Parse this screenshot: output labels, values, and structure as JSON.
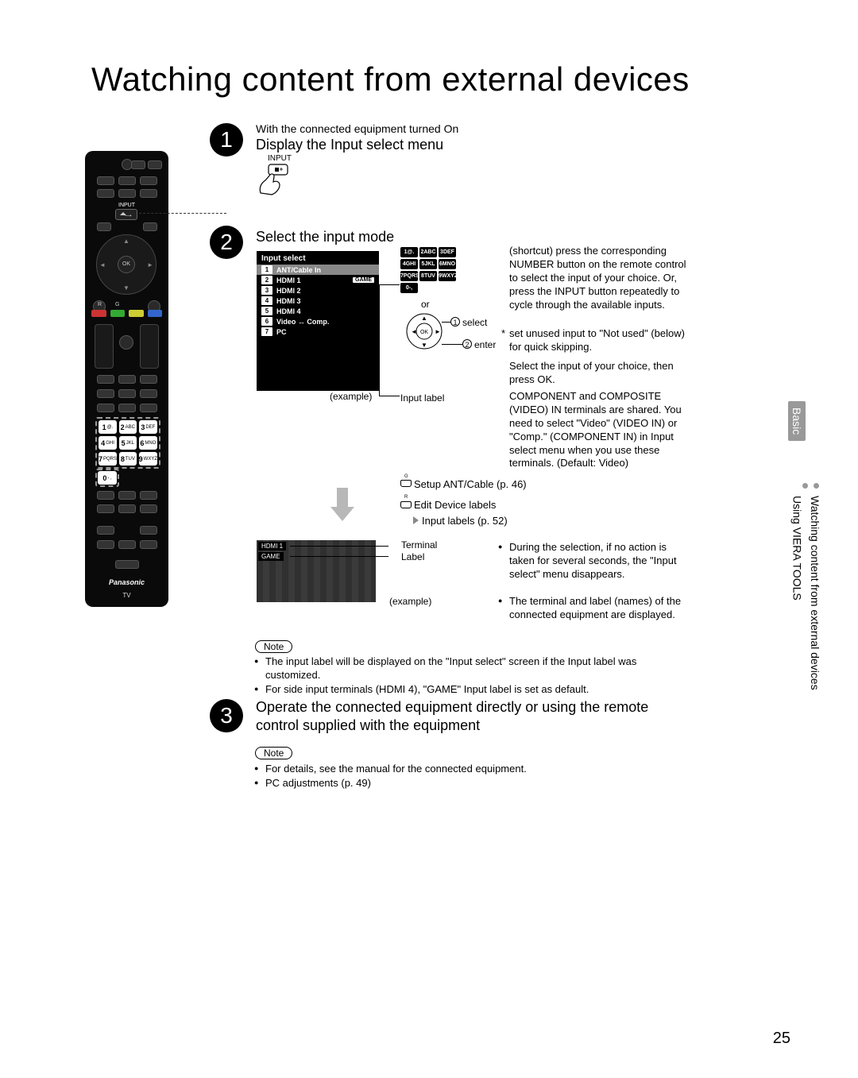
{
  "page_title": "Watching content from external devices",
  "page_number": "25",
  "remote": {
    "input_label": "INPUT",
    "ok": "OK",
    "r": "R",
    "g": "G",
    "keys": [
      {
        "n": "1",
        "s": "@."
      },
      {
        "n": "2",
        "s": "ABC"
      },
      {
        "n": "3",
        "s": "DEF"
      },
      {
        "n": "4",
        "s": "GHI"
      },
      {
        "n": "5",
        "s": "JKL"
      },
      {
        "n": "6",
        "s": "MNO"
      },
      {
        "n": "7",
        "s": "PQRS"
      },
      {
        "n": "8",
        "s": "TUV"
      },
      {
        "n": "9",
        "s": "WXYZ"
      }
    ],
    "zero": {
      "n": "0",
      "s": "- ,"
    },
    "brand": "Panasonic",
    "tv": "TV"
  },
  "step1": {
    "num": "1",
    "pre": "With the connected equipment turned On",
    "title": "Display the Input select menu",
    "input": "INPUT"
  },
  "step2": {
    "num": "2",
    "title": "Select the input mode",
    "menu_title": "Input select",
    "menu_items": [
      {
        "n": "1",
        "t": "ANT/Cable In",
        "hl": true
      },
      {
        "n": "2",
        "t": "HDMI 1",
        "game": "GAME"
      },
      {
        "n": "3",
        "t": "HDMI 2"
      },
      {
        "n": "4",
        "t": "HDMI 3"
      },
      {
        "n": "5",
        "t": "HDMI 4"
      },
      {
        "n": "6",
        "t": "Video  ↔  Comp."
      },
      {
        "n": "7",
        "t": "PC"
      }
    ],
    "example": "(example)",
    "input_label": "Input label",
    "keypad_mini": [
      "1@.",
      "2ABC",
      "3DEF",
      "4GHI",
      "5JKL",
      "6MNO",
      "7PQRS",
      "8TUV",
      "9WXYZ",
      "0-,"
    ],
    "or": "or",
    "select_n": "1",
    "select": "select",
    "enter_n": "2",
    "enter": "enter",
    "p_shortcut": "(shortcut) press the corresponding NUMBER button on the remote control to select the input of your choice. Or, press the INPUT button repeatedly to cycle through the available inputs.",
    "p_setunused": "set unused input to \"Not used\" (below) for quick skipping.",
    "p_selinput": "Select the input of your choice, then press OK.",
    "p_comp": "COMPONENT and COMPOSITE (VIDEO) IN terminals are shared. You need to select \"Video\" (VIDEO IN) or \"Comp.\" (COMPONENT IN) in Input select menu when you use these terminals. (Default: Video)",
    "setup": "Setup ANT/Cable (p. 46)",
    "edit": "Edit Device labels",
    "inputlabels": "Input labels (p. 52)",
    "thumb_tag1": "HDMI 1",
    "thumb_tag2": "GAME",
    "terminal": "Terminal",
    "label_t": "Label",
    "example2": "(example)",
    "bul_during": "During the selection, if no action is taken for several seconds, the \"Input select\" menu disappears.",
    "bul_terminal": "The terminal and label (names) of the connected equipment are displayed.",
    "note": "Note",
    "note_l1": "The input label will be displayed on the \"Input select\" screen if the Input label was customized.",
    "note_l2": "For side input terminals (HDMI 4), \"GAME\" Input label is set as default."
  },
  "step3": {
    "num": "3",
    "title": "Operate the connected equipment directly or using the remote control supplied with the equipment",
    "note": "Note",
    "l1": "For details, see the manual for the connected equipment.",
    "l2": "PC adjustments (p. 49)"
  },
  "side": {
    "basic": "Basic",
    "line1": "Watching content from external devices",
    "line2": "Using VIERA TOOLS"
  },
  "colors": {
    "black": "#000000",
    "white": "#ffffff",
    "grey": "#888888",
    "hl": "#888888",
    "sidebg": "#999999"
  }
}
